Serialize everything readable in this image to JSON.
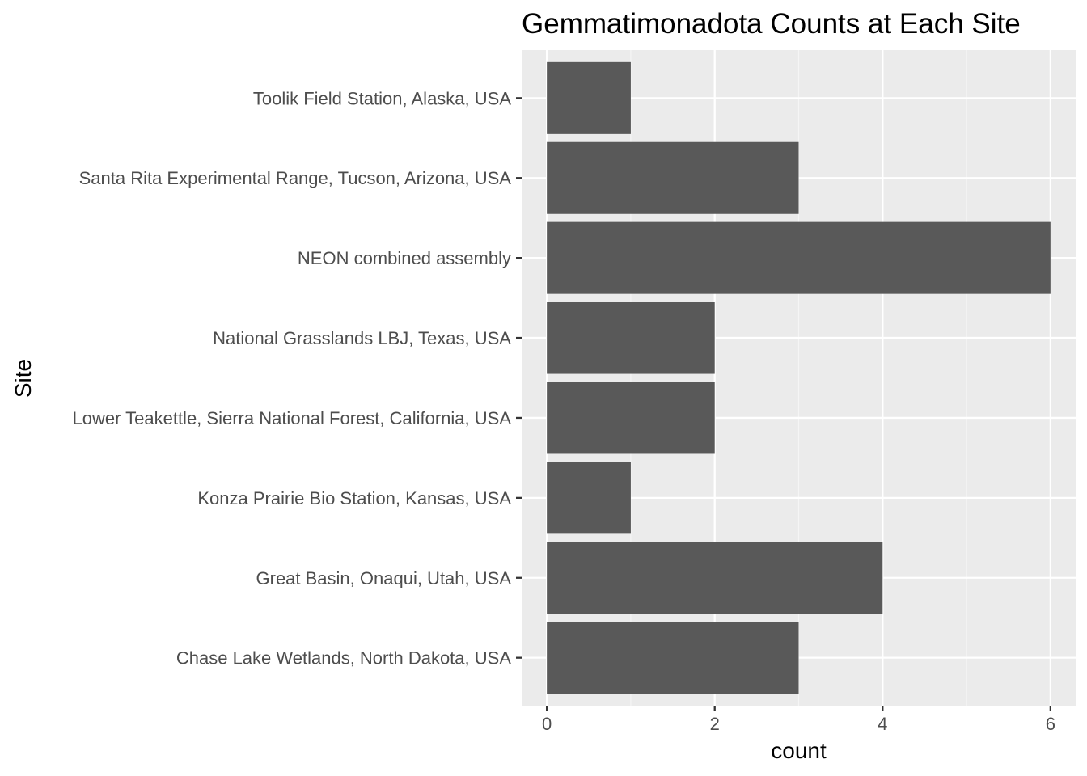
{
  "chart_data": {
    "type": "bar",
    "orientation": "horizontal",
    "title": "Gemmatimonadota Counts at Each Site",
    "xlabel": "count",
    "ylabel": "Site",
    "categories": [
      "Chase Lake Wetlands, North Dakota, USA",
      "Great Basin, Onaqui, Utah, USA",
      "Konza Prairie Bio Station, Kansas, USA",
      "Lower Teakettle, Sierra National Forest, California, USA",
      "National Grasslands LBJ, Texas, USA",
      "NEON combined assembly",
      "Santa Rita Experimental Range, Tucson, Arizona, USA",
      "Toolik Field Station, Alaska, USA"
    ],
    "values": [
      3,
      4,
      1,
      2,
      2,
      6,
      3,
      1
    ],
    "xlim": [
      -0.3,
      6.3
    ],
    "x_ticks": [
      0,
      2,
      4,
      6
    ],
    "x_tick_labels": [
      "0",
      "2",
      "4",
      "6"
    ],
    "grid": true,
    "legend": "none",
    "colors": {
      "bar": "#595959",
      "panel": "#ebebeb",
      "grid_major": "#ffffff",
      "grid_minor": "#f5f5f5",
      "tick_text": "#4d4d4d",
      "tick_mark": "#333333",
      "title_text": "#000000"
    }
  }
}
